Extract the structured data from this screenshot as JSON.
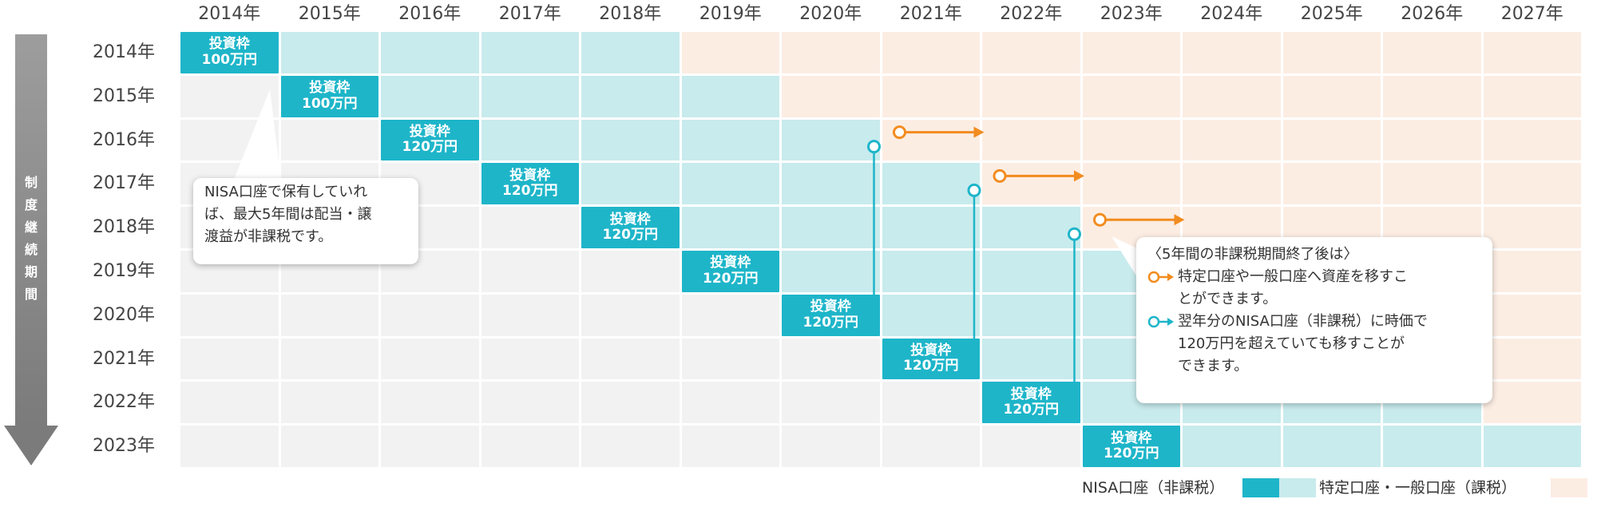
{
  "columns": [
    "2014年",
    "2015年",
    "2016年",
    "2017年",
    "2018年",
    "2019年",
    "2020年",
    "2021年",
    "2022年",
    "2023年",
    "2024年",
    "2025年",
    "2026年",
    "2027年"
  ],
  "rows": [
    "2014年",
    "2015年",
    "2016年",
    "2017年",
    "2018年",
    "2019年",
    "2020年",
    "2021年",
    "2022年",
    "2023年"
  ],
  "investment_frames": [
    {
      "label": "投資枠",
      "amount": "100万円"
    },
    {
      "label": "投資枠",
      "amount": "100万円"
    },
    {
      "label": "投資枠",
      "amount": "120万円"
    },
    {
      "label": "投資枠",
      "amount": "120万円"
    },
    {
      "label": "投資枠",
      "amount": "120万円"
    },
    {
      "label": "投資枠",
      "amount": "120万円"
    },
    {
      "label": "投資枠",
      "amount": "120万円"
    },
    {
      "label": "投資枠",
      "amount": "120万円"
    },
    {
      "label": "投資枠",
      "amount": "120万円"
    },
    {
      "label": "投資枠",
      "amount": "120万円"
    }
  ],
  "side_arrow_label": "制度継続期間",
  "callout_left": {
    "line1": "NISA口座で保有していれ",
    "line2": "ば、最大5年間は配当・譲",
    "line3": "渡益が非課税です。"
  },
  "callout_right": {
    "title": "〈5年間の非課税期間終了後は〉",
    "item1_line1": "特定口座や一般口座へ資産を移すこ",
    "item1_line2": "とができます。",
    "item2_line1": "翌年分のNISA口座（非課税）に時価で",
    "item2_line2": "120万円を超えていても移すことが",
    "item2_line3": "できます。"
  },
  "legend": {
    "nisa_label": "NISA口座（非課税）",
    "taxable_label": "特定口座・一般口座（課税）"
  },
  "colors": {
    "frame": "#1eb5c9",
    "nisa": "#c8ebed",
    "taxable": "#fcede3",
    "empty": "#f2f2f2",
    "orange_arrow": "#f28c1f",
    "teal_arrow": "#1eb5c9",
    "period_arrow": "#8a8a8a"
  }
}
